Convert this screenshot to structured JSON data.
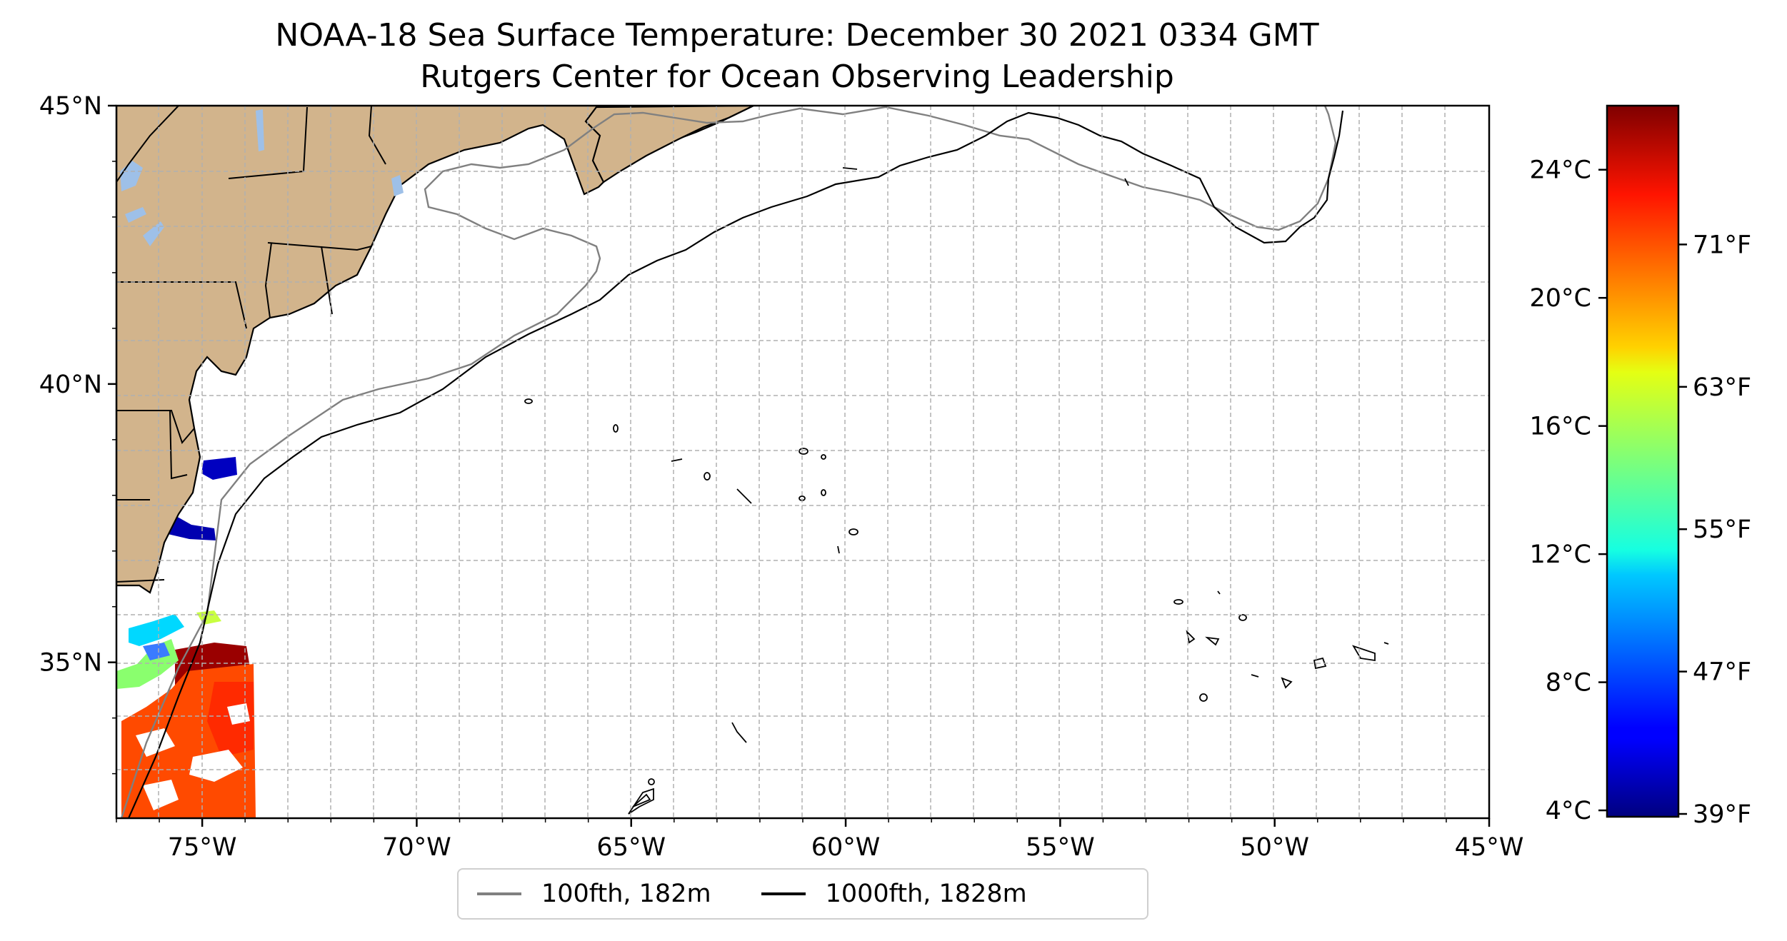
{
  "title": {
    "line1": "NOAA-18 Sea Surface Temperature: December 30 2021 0334 GMT",
    "line2": "Rutgers Center for Ocean Observing Leadership"
  },
  "map": {
    "lon_range": [
      -77,
      -45
    ],
    "lat_range": [
      32.2,
      45
    ],
    "x_ticks": [
      {
        "lon": -75,
        "label": "75°W"
      },
      {
        "lon": -70,
        "label": "70°W"
      },
      {
        "lon": -65,
        "label": "65°W"
      },
      {
        "lon": -60,
        "label": "60°W"
      },
      {
        "lon": -55,
        "label": "55°W"
      },
      {
        "lon": -50,
        "label": "50°W"
      },
      {
        "lon": -45,
        "label": "45°W"
      }
    ],
    "y_ticks": [
      {
        "lat": 45,
        "label": "45°N"
      },
      {
        "lat": 40,
        "label": "40°N"
      },
      {
        "lat": 35,
        "label": "35°N"
      }
    ],
    "gridlines": "dashed",
    "land_color": "#d2b48c",
    "water_color": "#ffffff",
    "lake_color": "#9ec0e8"
  },
  "legend": {
    "placement": "below map",
    "items": [
      {
        "label": "100fth, 182m",
        "color": "#808080"
      },
      {
        "label": "1000fth, 1828m",
        "color": "#000000"
      }
    ]
  },
  "colorbar": {
    "colormap": "jet",
    "range_c": [
      3.8,
      26
    ],
    "celsius_ticks": [
      {
        "value": 4,
        "label": "4°C"
      },
      {
        "value": 8,
        "label": "8°C"
      },
      {
        "value": 12,
        "label": "12°C"
      },
      {
        "value": 16,
        "label": "16°C"
      },
      {
        "value": 20,
        "label": "20°C"
      },
      {
        "value": 24,
        "label": "24°C"
      }
    ],
    "fahrenheit_ticks": [
      {
        "value": 39,
        "label": "39°F"
      },
      {
        "value": 47,
        "label": "47°F"
      },
      {
        "value": 55,
        "label": "55°F"
      },
      {
        "value": 63,
        "label": "63°F"
      },
      {
        "value": 71,
        "label": "71°F"
      }
    ]
  }
}
